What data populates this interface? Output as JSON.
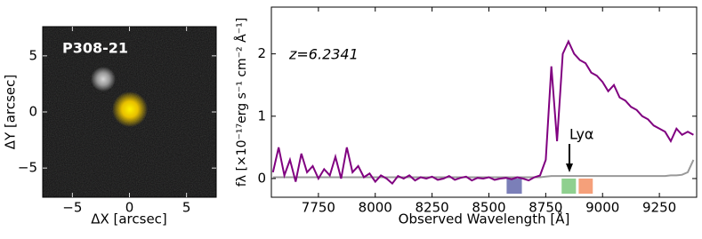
{
  "chart_data": [
    {
      "type": "image",
      "label": "P308-21",
      "xlabel": "ΔX [arcsec]",
      "ylabel": "ΔY [arcsec]",
      "xlim": [
        -7.6,
        7.6
      ],
      "ylim": [
        -7.6,
        7.6
      ],
      "xticks": [
        {
          "value": -5,
          "label": "−5"
        },
        0,
        5
      ],
      "yticks": [
        {
          "value": -5,
          "label": "−5"
        },
        0,
        5
      ]
    },
    {
      "type": "line",
      "xlabel": "Observed Wavelength [Å]",
      "ylabel": "fλ [×10⁻¹⁷erg s⁻¹ cm⁻² Å⁻¹]",
      "annotations": [
        "z=6.2341",
        "Lyα"
      ],
      "xlim": [
        7543,
        9414
      ],
      "ylim": [
        -0.3,
        2.75
      ],
      "xticks": [
        7750,
        8000,
        8250,
        8500,
        8750,
        9000,
        9250
      ],
      "yticks": [
        0,
        1,
        2
      ],
      "x": [
        7550,
        7575,
        7600,
        7625,
        7650,
        7675,
        7700,
        7725,
        7750,
        7775,
        7800,
        7825,
        7850,
        7875,
        7900,
        7925,
        7950,
        7975,
        8000,
        8025,
        8050,
        8075,
        8100,
        8125,
        8150,
        8175,
        8200,
        8225,
        8250,
        8275,
        8300,
        8325,
        8350,
        8375,
        8400,
        8425,
        8450,
        8475,
        8500,
        8525,
        8550,
        8575,
        8600,
        8625,
        8650,
        8675,
        8700,
        8725,
        8750,
        8775,
        8800,
        8825,
        8850,
        8875,
        8900,
        8925,
        8950,
        8975,
        9000,
        9025,
        9050,
        9075,
        9100,
        9125,
        9150,
        9175,
        9200,
        9225,
        9250,
        9275,
        9300,
        9325,
        9350,
        9375,
        9400
      ],
      "series": [
        {
          "color": "#800080",
          "values": [
            0.1,
            0.5,
            0.05,
            0.3,
            -0.05,
            0.4,
            0.1,
            0.2,
            0.0,
            0.15,
            0.05,
            0.35,
            0.0,
            0.5,
            0.1,
            0.2,
            0.02,
            0.08,
            -0.05,
            0.05,
            0.0,
            -0.08,
            0.04,
            0.0,
            0.05,
            -0.03,
            0.02,
            0.0,
            0.03,
            -0.02,
            0.0,
            0.04,
            -0.02,
            0.01,
            0.03,
            -0.03,
            0.01,
            0.0,
            0.02,
            -0.02,
            0.0,
            0.01,
            -0.01,
            0.02,
            0.0,
            -0.03,
            0.02,
            0.05,
            0.3,
            1.8,
            0.6,
            2.0,
            2.2,
            2.0,
            1.9,
            1.85,
            1.7,
            1.65,
            1.55,
            1.4,
            1.5,
            1.3,
            1.25,
            1.15,
            1.1,
            1.0,
            0.95,
            0.85,
            0.8,
            0.75,
            0.6,
            0.8,
            0.7,
            0.75,
            0.7
          ]
        },
        {
          "color": "#999999",
          "values": [
            0.02,
            0.02,
            0.02,
            0.02,
            0.02,
            0.02,
            0.02,
            0.02,
            0.02,
            0.02,
            0.02,
            0.02,
            0.02,
            0.02,
            0.02,
            0.02,
            0.02,
            0.02,
            0.02,
            0.02,
            0.02,
            0.02,
            0.02,
            0.02,
            0.02,
            0.02,
            0.02,
            0.02,
            0.02,
            0.02,
            0.02,
            0.02,
            0.02,
            0.02,
            0.02,
            0.02,
            0.02,
            0.02,
            0.02,
            0.02,
            0.02,
            0.02,
            0.02,
            0.02,
            0.02,
            0.02,
            0.02,
            0.02,
            0.03,
            0.04,
            0.04,
            0.04,
            0.04,
            0.04,
            0.04,
            0.04,
            0.04,
            0.04,
            0.04,
            0.04,
            0.04,
            0.04,
            0.04,
            0.04,
            0.04,
            0.04,
            0.04,
            0.04,
            0.04,
            0.04,
            0.05,
            0.05,
            0.06,
            0.1,
            0.3
          ]
        }
      ],
      "bands": [
        {
          "x": [
            8578,
            8645
          ],
          "color": "#7b7fb8"
        },
        {
          "x": [
            8820,
            8883
          ],
          "color": "#8fd08f"
        },
        {
          "x": [
            8895,
            8957
          ],
          "color": "#f5a07a"
        }
      ]
    }
  ]
}
